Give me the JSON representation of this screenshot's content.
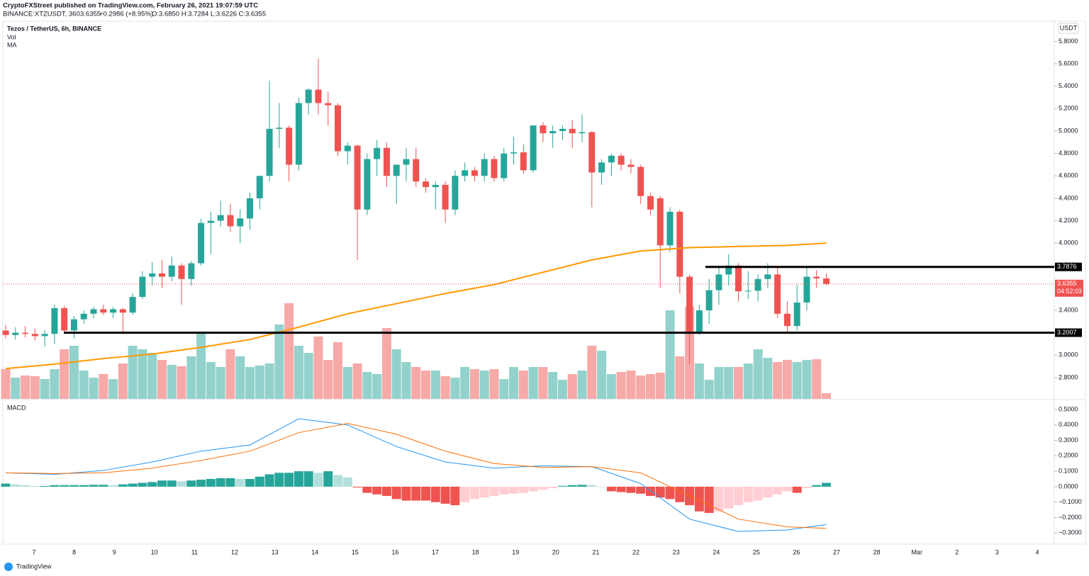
{
  "header": {
    "publisher": "CryptoFXStreet published on TradingView.com, February 26, 2021 19:07:59 UTC",
    "symbol": "BINANCE:XTZUSDT, 360",
    "last": "3.6355",
    "change": "+0.2986 (+8.95%)",
    "ohlc": "O:3.6850 H:3.7284 L:3.6226 C:3.6355",
    "brand": "TradingView"
  },
  "chart_data": [
    {
      "type": "candlestick",
      "title": "Tezos / TetherUS, 6h, BINANCE",
      "volume_label": "Vol",
      "ma_label": "MA",
      "currency": "USDT",
      "up_color": "#26a69a",
      "down_color": "#ef5350",
      "volume_up_color": "#93d2cc",
      "volume_down_color": "#f7a9a7",
      "ma_color": "#ff9800",
      "grid": false,
      "ylim": [
        2.61,
        5.98
      ],
      "yticks": [
        {
          "value": 2.8,
          "label": "2.8000"
        },
        {
          "value": 3.0,
          "label": "3.0000"
        },
        {
          "value": 3.2,
          "label": "3.2000"
        },
        {
          "value": 3.4,
          "label": "3.4000"
        },
        {
          "value": 3.6,
          "label": "3.6000"
        },
        {
          "value": 3.8,
          "label": "3.8000"
        },
        {
          "value": 4.0,
          "label": "4.0000"
        },
        {
          "value": 4.2,
          "label": "4.2000"
        },
        {
          "value": 4.4,
          "label": "4.4000"
        },
        {
          "value": 4.6,
          "label": "4.6000"
        },
        {
          "value": 4.8,
          "label": "4.8000"
        },
        {
          "value": 5.0,
          "label": "5.0000"
        },
        {
          "value": 5.2,
          "label": "5.2000"
        },
        {
          "value": 5.4,
          "label": "5.4000"
        },
        {
          "value": 5.6,
          "label": "5.6000"
        },
        {
          "value": 5.8,
          "label": "5.8000"
        }
      ],
      "xticks": [
        "7",
        "8",
        "9",
        "10",
        "11",
        "12",
        "13",
        "14",
        "15",
        "16",
        "17",
        "18",
        "19",
        "20",
        "21",
        "22",
        "23",
        "24",
        "25",
        "26",
        "27",
        "28",
        "Mar",
        "2",
        "3",
        "4"
      ],
      "candles": [
        [
          3.22,
          3.27,
          3.15,
          3.18
        ],
        [
          3.18,
          3.25,
          3.14,
          3.2
        ],
        [
          3.2,
          3.26,
          3.16,
          3.19
        ],
        [
          3.19,
          3.24,
          3.13,
          3.17
        ],
        [
          3.17,
          3.22,
          3.08,
          3.19
        ],
        [
          3.19,
          3.45,
          3.1,
          3.42
        ],
        [
          3.42,
          3.44,
          3.2,
          3.22
        ],
        [
          3.22,
          3.35,
          3.15,
          3.32
        ],
        [
          3.32,
          3.4,
          3.28,
          3.37
        ],
        [
          3.37,
          3.43,
          3.33,
          3.41
        ],
        [
          3.41,
          3.45,
          3.36,
          3.38
        ],
        [
          3.38,
          3.43,
          3.33,
          3.41
        ],
        [
          3.41,
          3.42,
          3.19,
          3.38
        ],
        [
          3.38,
          3.55,
          3.36,
          3.52
        ],
        [
          3.52,
          3.75,
          3.5,
          3.7
        ],
        [
          3.7,
          3.83,
          3.62,
          3.73
        ],
        [
          3.73,
          3.85,
          3.6,
          3.7
        ],
        [
          3.7,
          3.88,
          3.66,
          3.8
        ],
        [
          3.8,
          3.82,
          3.45,
          3.68
        ],
        [
          3.68,
          3.84,
          3.62,
          3.82
        ],
        [
          3.82,
          4.22,
          3.8,
          4.18
        ],
        [
          4.18,
          4.28,
          3.9,
          4.2
        ],
        [
          4.2,
          4.38,
          4.15,
          4.25
        ],
        [
          4.25,
          4.35,
          4.1,
          4.15
        ],
        [
          4.15,
          4.3,
          4.0,
          4.22
        ],
        [
          4.22,
          4.45,
          4.12,
          4.4
        ],
        [
          4.4,
          4.6,
          4.3,
          4.6
        ],
        [
          4.6,
          5.45,
          4.55,
          5.02
        ],
        [
          5.02,
          5.25,
          4.85,
          5.03
        ],
        [
          5.03,
          5.05,
          4.55,
          4.7
        ],
        [
          4.7,
          5.3,
          4.65,
          5.25
        ],
        [
          5.25,
          5.38,
          5.15,
          5.37
        ],
        [
          5.37,
          5.65,
          5.15,
          5.25
        ],
        [
          5.25,
          5.35,
          5.05,
          5.23
        ],
        [
          5.23,
          5.25,
          4.78,
          4.82
        ],
        [
          4.82,
          4.9,
          4.7,
          4.87
        ],
        [
          4.87,
          4.88,
          3.85,
          4.3
        ],
        [
          4.3,
          4.8,
          4.25,
          4.75
        ],
        [
          4.75,
          4.92,
          4.6,
          4.85
        ],
        [
          4.85,
          4.9,
          4.5,
          4.6
        ],
        [
          4.6,
          4.7,
          4.35,
          4.7
        ],
        [
          4.7,
          4.85,
          4.55,
          4.75
        ],
        [
          4.75,
          4.85,
          4.5,
          4.55
        ],
        [
          4.55,
          4.58,
          4.45,
          4.5
        ],
        [
          4.5,
          4.55,
          4.3,
          4.52
        ],
        [
          4.52,
          4.55,
          4.18,
          4.3
        ],
        [
          4.3,
          4.65,
          4.25,
          4.6
        ],
        [
          4.6,
          4.72,
          4.55,
          4.65
        ],
        [
          4.65,
          4.68,
          4.55,
          4.6
        ],
        [
          4.6,
          4.8,
          4.55,
          4.75
        ],
        [
          4.75,
          4.78,
          4.55,
          4.58
        ],
        [
          4.58,
          4.85,
          4.55,
          4.8
        ],
        [
          4.8,
          4.95,
          4.7,
          4.81
        ],
        [
          4.81,
          4.88,
          4.62,
          4.65
        ],
        [
          4.65,
          5.05,
          4.63,
          5.05
        ],
        [
          5.05,
          5.08,
          4.9,
          4.98
        ],
        [
          4.98,
          5.05,
          4.85,
          5.0
        ],
        [
          5.0,
          5.05,
          4.92,
          5.02
        ],
        [
          5.02,
          5.1,
          4.85,
          4.98
        ],
        [
          4.98,
          5.15,
          4.9,
          4.99
        ],
        [
          4.99,
          5.0,
          4.32,
          4.63
        ],
        [
          4.63,
          4.75,
          4.52,
          4.72
        ],
        [
          4.72,
          4.8,
          4.6,
          4.78
        ],
        [
          4.78,
          4.8,
          4.65,
          4.7
        ],
        [
          4.7,
          4.75,
          4.62,
          4.68
        ],
        [
          4.68,
          4.7,
          4.35,
          4.42
        ],
        [
          4.42,
          4.45,
          4.25,
          4.3
        ],
        [
          4.4,
          4.42,
          3.6,
          3.98
        ],
        [
          3.98,
          4.32,
          3.92,
          4.28
        ],
        [
          4.28,
          4.3,
          3.55,
          3.7
        ],
        [
          3.7,
          3.72,
          2.92,
          3.2
        ],
        [
          3.2,
          3.45,
          3.18,
          3.4
        ],
        [
          3.4,
          3.68,
          3.28,
          3.58
        ],
        [
          3.58,
          3.8,
          3.45,
          3.72
        ],
        [
          3.72,
          3.9,
          3.62,
          3.8
        ],
        [
          3.8,
          3.82,
          3.48,
          3.57
        ],
        [
          3.57,
          3.75,
          3.5,
          3.575
        ],
        [
          3.575,
          3.72,
          3.48,
          3.68
        ],
        [
          3.68,
          3.82,
          3.6,
          3.72
        ],
        [
          3.72,
          3.78,
          3.33,
          3.37
        ],
        [
          3.37,
          3.48,
          3.2,
          3.26
        ],
        [
          3.26,
          3.63,
          3.22,
          3.47
        ],
        [
          3.47,
          3.79,
          3.4,
          3.7
        ],
        [
          3.7,
          3.76,
          3.6,
          3.685
        ],
        [
          3.685,
          3.7284,
          3.6226,
          3.6355
        ]
      ],
      "volume": [
        42,
        30,
        33,
        32,
        28,
        42,
        70,
        75,
        40,
        30,
        35,
        28,
        50,
        75,
        70,
        65,
        55,
        48,
        46,
        60,
        95,
        52,
        45,
        70,
        60,
        45,
        47,
        50,
        105,
        135,
        75,
        65,
        88,
        55,
        80,
        45,
        50,
        38,
        35,
        100,
        70,
        52,
        45,
        40,
        40,
        32,
        30,
        45,
        42,
        40,
        42,
        28,
        45,
        40,
        45,
        45,
        38,
        27,
        35,
        40,
        75,
        68,
        35,
        38,
        40,
        33,
        35,
        37,
        125,
        60,
        130,
        50,
        27,
        45,
        45,
        45,
        50,
        70,
        58,
        52,
        55,
        52,
        55,
        56,
        8
      ],
      "ma": {
        "x": [
          0,
          5,
          10,
          15,
          20,
          25,
          30,
          35,
          40,
          45,
          50,
          55,
          60,
          65,
          70,
          75,
          80,
          84
        ],
        "values": [
          2.88,
          2.92,
          2.97,
          3.01,
          3.07,
          3.14,
          3.25,
          3.37,
          3.46,
          3.55,
          3.63,
          3.74,
          3.85,
          3.93,
          3.96,
          3.97,
          3.98,
          4.0
        ]
      },
      "levels": [
        3.7876,
        3.2007
      ],
      "last_price": 3.6355,
      "countdown": "04:52:03"
    },
    {
      "type": "macd",
      "title": "MACD",
      "macd_color": "#2196f3",
      "signal_color": "#ff6d00",
      "hist_colors": [
        "#26a69a",
        "#b2dfdb",
        "#ef5350",
        "#ffcdd2"
      ],
      "ylim": [
        -0.372,
        0.555
      ],
      "yticks": [
        {
          "value": -0.3,
          "label": "−0.3000"
        },
        {
          "value": -0.2,
          "label": "−0.2000"
        },
        {
          "value": -0.1,
          "label": "−0.1000"
        },
        {
          "value": 0,
          "label": "0.0000"
        },
        {
          "value": 0.1,
          "label": "0.1000"
        },
        {
          "value": 0.2,
          "label": "0.2000"
        },
        {
          "value": 0.3,
          "label": "0.3000"
        },
        {
          "value": 0.4,
          "label": "0.4000"
        },
        {
          "value": 0.5,
          "label": "0.5000"
        }
      ],
      "histogram": [
        0.02,
        0.015,
        0.01,
        0.005,
        0.005,
        0.01,
        0.01,
        0.01,
        0.01,
        0.012,
        0.012,
        0.01,
        0.015,
        0.02,
        0.025,
        0.03,
        0.04,
        0.04,
        0.035,
        0.04,
        0.045,
        0.05,
        0.055,
        0.055,
        0.05,
        0.05,
        0.065,
        0.08,
        0.09,
        0.09,
        0.1,
        0.1,
        0.09,
        0.1,
        0.075,
        0.06,
        -0.005,
        -0.04,
        -0.05,
        -0.06,
        -0.08,
        -0.09,
        -0.09,
        -0.09,
        -0.1,
        -0.11,
        -0.12,
        -0.1,
        -0.08,
        -0.07,
        -0.06,
        -0.05,
        -0.045,
        -0.04,
        -0.03,
        -0.02,
        -0.01,
        0.005,
        0.01,
        0.012,
        0.01,
        0.0,
        -0.03,
        -0.035,
        -0.04,
        -0.045,
        -0.06,
        -0.07,
        -0.08,
        -0.1,
        -0.12,
        -0.16,
        -0.17,
        -0.16,
        -0.14,
        -0.12,
        -0.1,
        -0.09,
        -0.07,
        -0.05,
        -0.03,
        -0.04,
        -0.01,
        0.01,
        0.025
      ],
      "x": [
        0,
        5,
        10,
        15,
        20,
        25,
        30,
        35,
        40,
        45,
        50,
        55,
        60,
        65,
        70,
        75,
        80,
        84
      ],
      "macd": [
        0.09,
        0.08,
        0.105,
        0.16,
        0.23,
        0.27,
        0.44,
        0.4,
        0.26,
        0.16,
        0.12,
        0.135,
        0.13,
        0.02,
        -0.21,
        -0.29,
        -0.28,
        -0.245
      ],
      "signal": [
        0.09,
        0.085,
        0.09,
        0.12,
        0.17,
        0.23,
        0.35,
        0.41,
        0.34,
        0.23,
        0.15,
        0.125,
        0.13,
        0.09,
        -0.06,
        -0.21,
        -0.26,
        -0.27
      ]
    }
  ]
}
